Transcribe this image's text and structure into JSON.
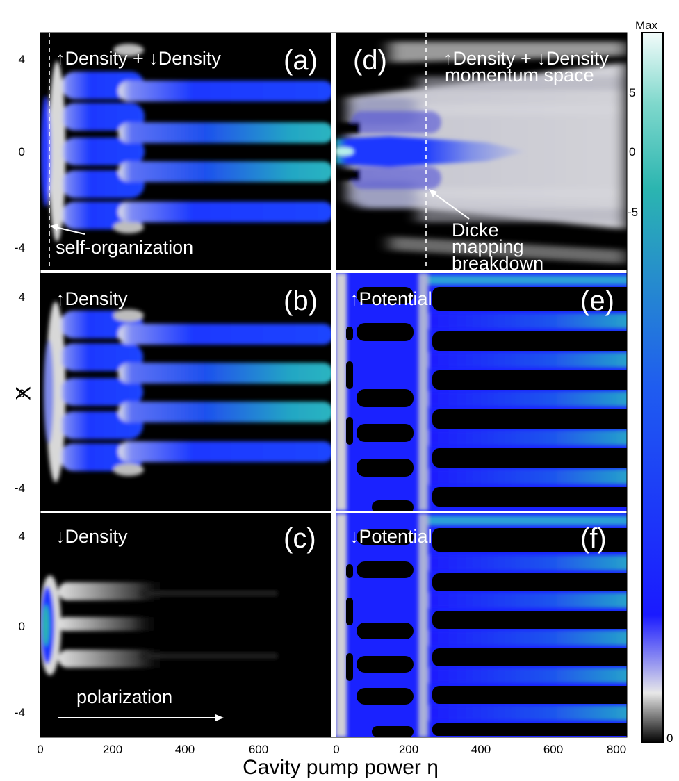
{
  "chart_data": {
    "type": "heatmap",
    "xlabel": "Cavity pump power η",
    "ylabel": "X",
    "xlim": [
      0,
      800
    ],
    "ylim": [
      -5,
      5
    ],
    "x_ticks": [
      "0",
      "200",
      "400",
      "600",
      "800"
    ],
    "y_ticks": [
      "4",
      "0",
      "-4"
    ],
    "colorbar": {
      "max_label": "Max",
      "min_label": "0",
      "ticks": [
        "5",
        "0",
        "-5"
      ],
      "colors": [
        "#000000",
        "#e8e8e8",
        "#1a1aff",
        "#2bb5b0",
        "#f2fbfa"
      ]
    },
    "panels": [
      {
        "id": "a",
        "label": "(a)",
        "title": "↑Density + ↓Density",
        "annotation": "self-organization",
        "threshold_eta": 30,
        "transition_eta": 200
      },
      {
        "id": "b",
        "label": "(b)",
        "title": "↑Density",
        "transition_eta": 200
      },
      {
        "id": "c",
        "label": "(c)",
        "title": "↓Density",
        "annotation": "polarization"
      },
      {
        "id": "d",
        "label": "(d)",
        "title": "↑Density + ↓Density",
        "subtitle": "momentum space",
        "annotation_lines": [
          "Dicke",
          "mapping",
          "breakdown"
        ],
        "breakdown_eta": 240
      },
      {
        "id": "e",
        "label": "(e)",
        "title": "↑Potential",
        "transition_eta": 230
      },
      {
        "id": "f",
        "label": "(f)",
        "title": "↓Potential",
        "transition_eta": 230
      }
    ]
  }
}
